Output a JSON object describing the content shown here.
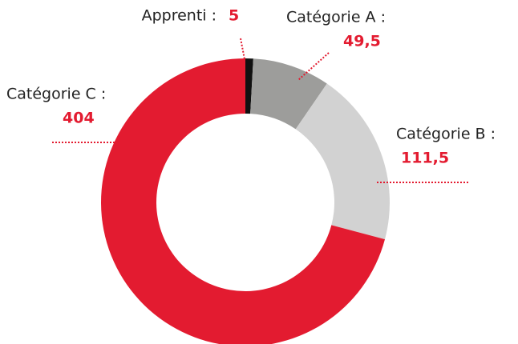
{
  "chart_data": {
    "type": "donut",
    "categories": [
      "Apprenti :",
      "Catégorie A :",
      "Catégorie B :",
      "Catégorie C :"
    ],
    "values": [
      5,
      49.5,
      111.5,
      404
    ],
    "value_labels": [
      "5",
      "49,5",
      "111,5",
      "404"
    ],
    "colors": [
      "#111111",
      "#9d9d9b",
      "#d2d2d2",
      "#e31b30"
    ]
  }
}
